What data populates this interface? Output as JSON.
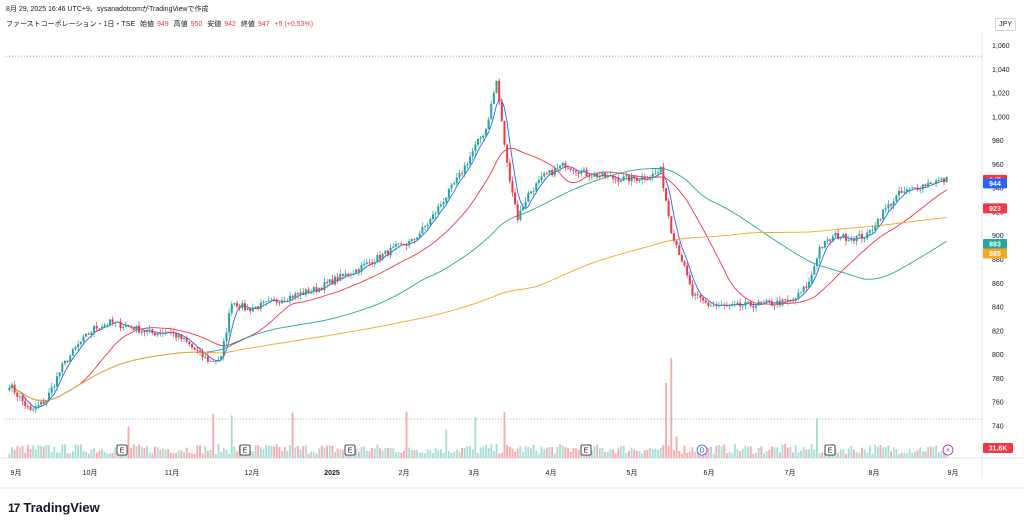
{
  "header": {
    "timestamp_line": "8月 29, 2025 16:46 UTC+9、sysanadotcomがTradingViewで作成",
    "symbol": "ファーストコーポレーション・1日・TSE",
    "open_label": "始値",
    "open": "949",
    "high_label": "高値",
    "high": "950",
    "low_label": "安値",
    "low": "942",
    "close_label": "終値",
    "close": "947",
    "change": "+5 (+0.53%)"
  },
  "currency": "JPY",
  "brand": {
    "name": "TradingView",
    "logo_text": "17"
  },
  "price_tags": [
    {
      "value": "947",
      "color": "#f23645"
    },
    {
      "value": "944",
      "color": "#2962ff"
    },
    {
      "value": "923",
      "color": "#f23645"
    },
    {
      "value": "893",
      "color": "#26a69a"
    },
    {
      "value": "885",
      "color": "#f5a623"
    }
  ],
  "volume_tag": {
    "value": "31.6K",
    "color": "#f23645"
  },
  "colors": {
    "up": "#26a69a",
    "down": "#f23645",
    "ma_fast": "#2962ff",
    "ma_mid": "#f23645",
    "ma_slow": "#26a69a",
    "ma_long": "#f5a623"
  },
  "chart_data": {
    "type": "candlestick",
    "y_ticks": [
      "1,060",
      "1,040",
      "1,020",
      "1,000",
      "980",
      "960",
      "940",
      "920",
      "900",
      "880",
      "860",
      "840",
      "820",
      "800",
      "780",
      "760",
      "740",
      "720"
    ],
    "ylim": [
      713,
      1068
    ],
    "x_ticks": [
      "9月",
      "10月",
      "11月",
      "12月",
      "2025",
      "2月",
      "3月",
      "4月",
      "5月",
      "6月",
      "7月",
      "8月",
      "9月"
    ],
    "dotted_line": 1051,
    "event_markers": [
      {
        "label": "E",
        "date": "10月"
      },
      {
        "label": "E",
        "date": "12月"
      },
      {
        "label": "E",
        "date": "2025"
      },
      {
        "label": "E",
        "date": "4月"
      },
      {
        "label": "D",
        "date": "6月"
      },
      {
        "label": "E",
        "date": "7月"
      }
    ],
    "price_key_points": [
      [
        0,
        775
      ],
      [
        8,
        752
      ],
      [
        14,
        762
      ],
      [
        20,
        790
      ],
      [
        26,
        808
      ],
      [
        32,
        822
      ],
      [
        38,
        827
      ],
      [
        46,
        823
      ],
      [
        54,
        818
      ],
      [
        60,
        820
      ],
      [
        66,
        812
      ],
      [
        72,
        800
      ],
      [
        76,
        794
      ],
      [
        80,
        797
      ],
      [
        84,
        845
      ],
      [
        90,
        838
      ],
      [
        96,
        842
      ],
      [
        102,
        846
      ],
      [
        108,
        850
      ],
      [
        116,
        855
      ],
      [
        122,
        862
      ],
      [
        130,
        870
      ],
      [
        138,
        880
      ],
      [
        146,
        890
      ],
      [
        152,
        895
      ],
      [
        158,
        910
      ],
      [
        164,
        930
      ],
      [
        170,
        950
      ],
      [
        176,
        975
      ],
      [
        180,
        990
      ],
      [
        184,
        1030
      ],
      [
        188,
        960
      ],
      [
        192,
        915
      ],
      [
        196,
        935
      ],
      [
        202,
        950
      ],
      [
        210,
        960
      ],
      [
        218,
        952
      ],
      [
        224,
        950
      ],
      [
        230,
        948
      ],
      [
        236,
        948
      ],
      [
        242,
        950
      ],
      [
        246,
        955
      ],
      [
        250,
        905
      ],
      [
        254,
        880
      ],
      [
        258,
        850
      ],
      [
        264,
        842
      ],
      [
        272,
        840
      ],
      [
        280,
        842
      ],
      [
        288,
        843
      ],
      [
        296,
        845
      ],
      [
        302,
        860
      ],
      [
        306,
        890
      ],
      [
        312,
        900
      ],
      [
        318,
        898
      ],
      [
        324,
        900
      ],
      [
        330,
        920
      ],
      [
        336,
        935
      ],
      [
        342,
        940
      ],
      [
        348,
        945
      ],
      [
        354,
        947
      ]
    ],
    "series": [
      {
        "name": "price_close",
        "values": "derived from price_key_points"
      }
    ],
    "volume_unit": "shares",
    "last_volume": "31.6K"
  }
}
